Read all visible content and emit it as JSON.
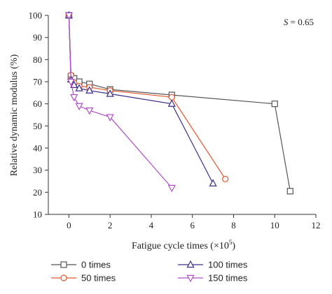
{
  "chart_data": {
    "type": "line",
    "title": "",
    "annotation": "S = 0.65",
    "xlabel": "Fatigue cycle times (×10",
    "xlabel_sup": "5",
    "xlabel_end": ")",
    "ylabel": "Relative dynamic modulus (%)",
    "xlim": [
      -1,
      12
    ],
    "ylim": [
      10,
      100
    ],
    "xticks": [
      0,
      2,
      4,
      6,
      8,
      10,
      12
    ],
    "yticks": [
      10,
      20,
      30,
      40,
      50,
      60,
      70,
      80,
      90,
      100
    ],
    "grid": false,
    "legend_position": "bottom",
    "series": [
      {
        "name": "0 times",
        "color": "#555555",
        "marker": "square",
        "x": [
          0,
          0.1,
          0.25,
          0.5,
          1,
          2,
          5,
          10,
          10.75
        ],
        "y": [
          100,
          72.5,
          71.5,
          70,
          69,
          66.5,
          64,
          60,
          20.5
        ]
      },
      {
        "name": "50 times",
        "color": "#e2572e",
        "marker": "circle",
        "x": [
          0,
          0.1,
          0.25,
          0.5,
          1,
          2,
          5,
          7.6
        ],
        "y": [
          100,
          73,
          69.5,
          68,
          67.5,
          66,
          63,
          26
        ]
      },
      {
        "name": "100 times",
        "color": "#3a2f8c",
        "marker": "triangle-up",
        "x": [
          0,
          0.1,
          0.25,
          0.5,
          1,
          2,
          5,
          7
        ],
        "y": [
          100,
          71,
          68.5,
          67,
          66,
          64.5,
          60,
          24
        ]
      },
      {
        "name": "150 times",
        "color": "#b050c8",
        "marker": "triangle-down",
        "x": [
          0,
          0.1,
          0.25,
          0.5,
          1,
          2,
          5
        ],
        "y": [
          100,
          70,
          63,
          59,
          57,
          54,
          22
        ]
      }
    ]
  }
}
